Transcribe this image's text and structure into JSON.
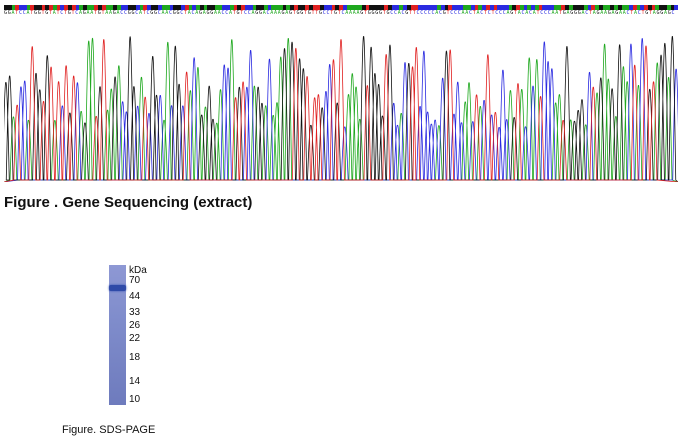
{
  "sequencing": {
    "sequence": "GGATCCATGGTGTATCTGTCAGAATGTAAGACCGGCATCGGCAACGGCTACAGAGGAACCATGTCCAGGACAAAGAGTGGTGTTGCCTGTCAAAAGTGGGGTGCCACGTTCCCCCACGTCCCAACTACTCTCCCAGTACACATCCCAATGAGGGACTAGAAGAGAACTACTGTAGGAGC",
    "caption": "Figure . Gene Sequencing (extract)",
    "base_colors": {
      "A": "#1ea81e",
      "C": "#2a2ae0",
      "G": "#111111",
      "T": "#e02020"
    }
  },
  "gel": {
    "unit_label": "kDa",
    "markers": [
      "70",
      "44",
      "33",
      "26",
      "22",
      "18",
      "14",
      "10"
    ],
    "caption": "Figure. SDS-PAGE",
    "band_color": "#2f4aa8",
    "lane_color": "#7f8ccb"
  }
}
